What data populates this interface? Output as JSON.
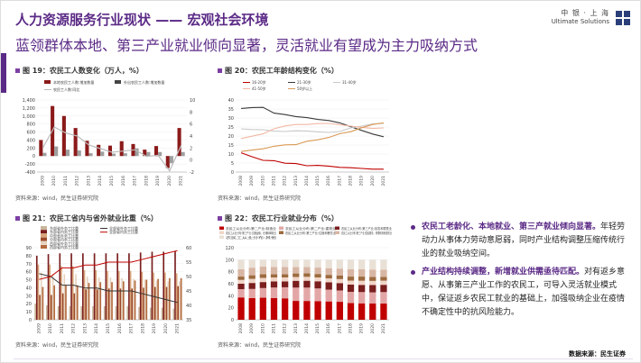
{
  "header": {
    "title": "人力资源服务行业现状 —— 宏观社会环境",
    "subtitle": "蓝领群体本地、第三产业就业倾向显著，灵活就业有望成为主力吸纳方式",
    "logo_cn": "中 银 · 上 海",
    "logo_en": "Ultimate Solutions"
  },
  "colors": {
    "accent": "#5b2a86",
    "bar_dark": "#8b1a1a",
    "line_gray": "#9e9e9e"
  },
  "charts": {
    "c19": {
      "title": "图 19：农民工人数变化（万人，%）",
      "source": "资料来源：wind，民生证券研究院"
    },
    "c20": {
      "title": "图 20：农民工年龄结构变化（%）",
      "source": "资料来源：wind，民生证券研究院"
    },
    "c21": {
      "title": "图 21：农民工省内与省外就业比重（%）",
      "source": "资料来源：wind，民生证券研究院"
    },
    "c22": {
      "title": "图 22：农民工行业就业分布（%）",
      "source": "资料来源：wind，民生证券研究院"
    }
  },
  "bullets": [
    {
      "highlight": "农民工老龄化、本地就业、第三产就业倾向显著。",
      "text": "年轻劳动力从事体力劳动意愿弱，同时产业结构调整压缩传统行业的就业吸纳空间。"
    },
    {
      "highlight": "产业结构持续调整，新增就业供需亟待匹配。",
      "text": "对有返乡意愿、从事第三产业工作的农民工，可导入灵活就业模式中，保证返乡农民工就业的基础上，加强吸纳企业在疫情不确定性中的抗风险能力。"
    }
  ],
  "footer": {
    "data_source": "数据来源：民生证券"
  },
  "chart_data": [
    {
      "type": "bar",
      "title": "图 19：农民工人数变化（万人，%）",
      "categories": [
        "2009",
        "2010",
        "2011",
        "2012",
        "2013",
        "2014",
        "2015",
        "2016",
        "2017",
        "2018",
        "2019",
        "2020",
        "2021"
      ],
      "series": [
        {
          "name": "本地农民工人数:增加数量",
          "values": [
            400,
            1250,
            1000,
            700,
            380,
            280,
            260,
            370,
            300,
            160,
            250,
            -300,
            700
          ]
        },
        {
          "name": "外出农民工人数:增加数量",
          "values": [
            80,
            240,
            160,
            140,
            70,
            110,
            60,
            70,
            190,
            100,
            100,
            -180,
            100
          ]
        },
        {
          "name": "农民工人数:同比",
          "values": [
            2.0,
            5.5,
            4.5,
            4.0,
            2.5,
            1.9,
            1.3,
            1.5,
            1.7,
            0.6,
            0.8,
            -1.8,
            2.4
          ]
        }
      ],
      "y_ticks": [
        "-400",
        "-200",
        "0",
        "200",
        "400",
        "600",
        "800",
        "1,000",
        "1,200",
        "1,400"
      ],
      "y2_ticks": [
        "-2",
        "0",
        "2",
        "4",
        "6",
        "8",
        "10"
      ],
      "ylim": [
        -400,
        1400
      ],
      "y2lim": [
        -2,
        10
      ]
    },
    {
      "type": "line",
      "title": "图 20：农民工年龄结构变化（%）",
      "categories": [
        "2008",
        "2009",
        "2010",
        "2011",
        "2012",
        "2013",
        "2014",
        "2015",
        "2016",
        "2017",
        "2018",
        "2019",
        "2020",
        "2021"
      ],
      "series": [
        {
          "name": "16-20岁",
          "values": [
            10.7,
            8.5,
            6.5,
            6.3,
            4.9,
            4.7,
            3.5,
            3.7,
            3.3,
            2.6,
            2.4,
            2.0,
            1.6,
            1.6
          ]
        },
        {
          "name": "21-30岁",
          "values": [
            35.3,
            35.8,
            35.9,
            32.7,
            31.9,
            30.8,
            30.2,
            29.2,
            28.6,
            27.3,
            25.2,
            23.1,
            21.1,
            19.6
          ]
        },
        {
          "name": "31-40岁",
          "values": [
            24.0,
            23.6,
            23.5,
            22.7,
            22.5,
            22.9,
            22.8,
            22.3,
            22.0,
            22.5,
            24.5,
            25.5,
            26.7,
            27.0
          ]
        },
        {
          "name": "41-50岁",
          "values": [
            18.6,
            19.9,
            21.2,
            24.0,
            25.6,
            26.4,
            26.4,
            26.9,
            27.0,
            26.3,
            25.5,
            24.8,
            24.2,
            24.5
          ]
        },
        {
          "name": "50岁以上",
          "values": [
            11.4,
            12.2,
            12.9,
            14.3,
            15.1,
            15.2,
            17.1,
            17.9,
            19.2,
            21.3,
            22.4,
            24.6,
            26.4,
            27.3
          ]
        }
      ],
      "y_ticks": [
        "0",
        "5",
        "10",
        "15",
        "20",
        "25",
        "30",
        "35",
        "40"
      ],
      "ylim": [
        0,
        40
      ]
    },
    {
      "type": "bar",
      "title": "图 21：农民工省内与省外就业比重（%）",
      "categories": [
        "2009",
        "2010",
        "2011",
        "2012",
        "2013",
        "2014",
        "2015",
        "2016",
        "2017",
        "2018",
        "2019",
        "2020",
        "2021"
      ],
      "series": [
        {
          "name": "东部省外务工比重",
          "values": [
            20,
            18,
            17,
            17,
            17,
            17,
            17,
            17,
            17,
            16,
            15,
            15,
            14
          ]
        },
        {
          "name": "东部省内务工比重",
          "values": [
            80,
            82,
            83,
            83,
            83,
            83,
            83,
            83,
            83,
            84,
            85,
            85,
            86
          ]
        },
        {
          "name": "中部省外务工比重",
          "values": [
            69,
            69,
            67,
            67,
            62,
            62,
            61,
            61,
            61,
            60,
            59,
            59,
            58
          ]
        },
        {
          "name": "中部省内务工比重",
          "values": [
            31,
            31,
            33,
            33,
            38,
            38,
            39,
            39,
            39,
            40,
            41,
            41,
            42
          ]
        },
        {
          "name": "西部省外务工比重",
          "values": [
            59,
            57,
            57,
            57,
            54,
            53,
            53,
            52,
            51,
            50,
            49,
            48,
            48
          ]
        },
        {
          "name": "西部省内务工比重",
          "values": [
            41,
            43,
            43,
            43,
            46,
            47,
            47,
            48,
            49,
            50,
            51,
            52,
            52
          ]
        },
        {
          "name": "全部省外务工比重",
          "values": [
            51,
            50,
            47,
            47,
            46,
            46,
            45,
            45,
            45,
            44,
            43,
            42,
            41
          ]
        },
        {
          "name": "全部省内务工比重",
          "values": [
            49,
            50,
            53,
            53,
            54,
            54,
            55,
            55,
            55,
            56,
            57,
            58,
            59
          ]
        }
      ],
      "y_ticks": [
        "0",
        "10",
        "20",
        "30",
        "40",
        "50",
        "60",
        "70",
        "80",
        "90"
      ],
      "y2_ticks": [
        "35",
        "40",
        "45",
        "50",
        "55",
        "60"
      ],
      "ylim": [
        0,
        90
      ],
      "y2lim": [
        35,
        60
      ]
    },
    {
      "type": "bar",
      "title": "图 22：农民工行业就业分布（%）",
      "categories": [
        "2008",
        "2009",
        "2010",
        "2011",
        "2012",
        "2013",
        "2014",
        "2015",
        "2016",
        "2017",
        "2018",
        "2019",
        "2020",
        "2021"
      ],
      "series": [
        {
          "name": "农民工从业分布:第二产业:制造业",
          "values": [
            37.2,
            36.1,
            36.7,
            36.0,
            35.7,
            31.4,
            31.3,
            31.1,
            30.5,
            29.9,
            27.9,
            27.4,
            27.3,
            27.1
          ]
        },
        {
          "name": "农民工从业分布:第二产业:建筑业",
          "values": [
            13.8,
            15.2,
            16.1,
            17.7,
            18.4,
            22.2,
            22.3,
            21.1,
            19.7,
            18.9,
            18.6,
            18.7,
            18.3,
            19.0
          ]
        },
        {
          "name": "农民工从业分布:第三产业:批发和零售业",
          "values": [
            9.0,
            10.0,
            10.0,
            10.1,
            9.8,
            11.3,
            11.4,
            11.9,
            12.3,
            12.3,
            12.1,
            12.0,
            12.2,
            12.1
          ]
        },
        {
          "name": "农民工从业分布:第三产业:交通运输、仓储和邮政业",
          "values": [
            6.4,
            6.8,
            6.9,
            6.6,
            6.6,
            6.3,
            6.5,
            6.4,
            6.4,
            6.6,
            6.6,
            6.9,
            6.9,
            6.9
          ]
        },
        {
          "name": "农民工从业分布:第三产业:住宿和餐饮业",
          "values": [
            5.5,
            6.0,
            6.0,
            5.3,
            5.2,
            5.9,
            6.0,
            5.8,
            5.9,
            6.2,
            6.7,
            6.9,
            6.5,
            6.4
          ]
        },
        {
          "name": "农民工从业分布:第三产业:居民服务、修理和其他服务业",
          "values": [
            12.2,
            12.7,
            12.7,
            12.2,
            12.2,
            10.6,
            10.2,
            10.6,
            11.1,
            11.3,
            12.2,
            12.3,
            12.4,
            11.8
          ]
        },
        {
          "name": "农民工从业分布:其他",
          "values": [
            15.9,
            13.2,
            11.6,
            12.1,
            12.1,
            12.3,
            12.3,
            13.1,
            13.9,
            14.8,
            15.9,
            15.8,
            16.4,
            16.7
          ]
        }
      ],
      "y_ticks": [
        "0",
        "20",
        "40",
        "60",
        "80",
        "100",
        "120"
      ],
      "ylim": [
        0,
        120
      ]
    }
  ]
}
